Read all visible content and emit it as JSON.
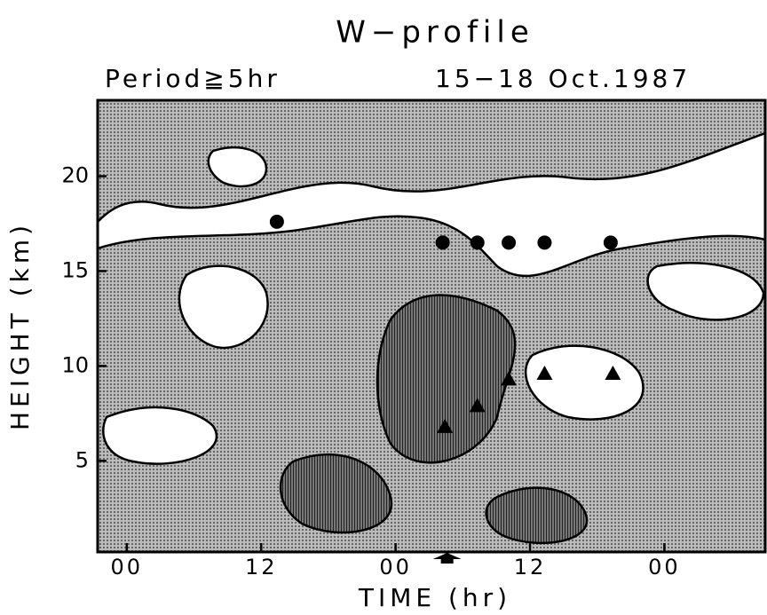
{
  "chart_data": {
    "type": "contour",
    "title": "W−profile",
    "subtitle": "Period≧5hr",
    "date_label": "15−18 Oct.1987",
    "xlabel": "TIME (hr)",
    "ylabel": "HEIGHT (km)",
    "xlim": [
      -2.6,
      57
    ],
    "ylim": [
      0.2,
      24
    ],
    "xticks": [
      {
        "value": 0,
        "label": "00"
      },
      {
        "value": 12,
        "label": "12"
      },
      {
        "value": 24,
        "label": "00"
      },
      {
        "value": 36,
        "label": "12"
      },
      {
        "value": 48,
        "label": "00"
      }
    ],
    "yticks": [
      5,
      10,
      15,
      20
    ],
    "markers": {
      "circles": {
        "x": [
          13.4,
          28.2,
          31.3,
          34.1,
          37.3,
          43.2
        ],
        "y": [
          17.6,
          16.5,
          16.5,
          16.5,
          16.5,
          16.5
        ],
        "color": "#000000"
      },
      "triangles": {
        "x": [
          28.4,
          31.3,
          34.1,
          37.3,
          43.4
        ],
        "y": [
          6.8,
          7.9,
          9.3,
          9.6,
          9.6
        ],
        "color": "#000000"
      }
    },
    "arrow_x": 28.6
  }
}
